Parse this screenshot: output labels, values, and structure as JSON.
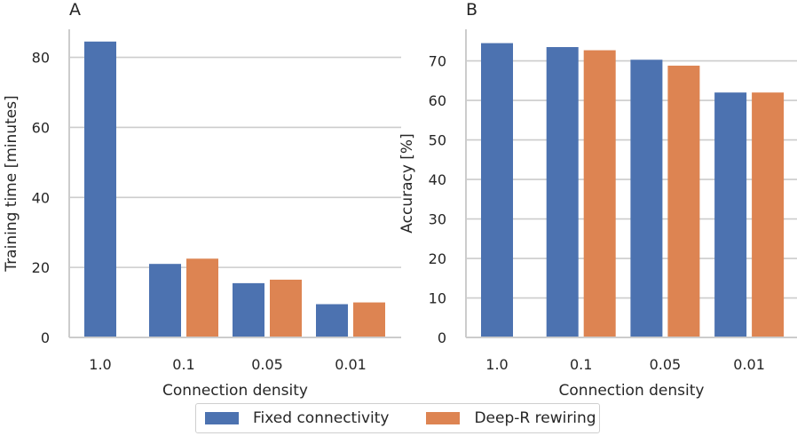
{
  "chart_data": [
    {
      "type": "bar",
      "panel_label": "A",
      "categories": [
        "1.0",
        "0.1",
        "0.05",
        "0.01"
      ],
      "xlabel": "Connection density",
      "ylabel": "Training time [minutes]",
      "ylim": [
        0,
        88
      ],
      "yticks": [
        0,
        20,
        40,
        60,
        80
      ],
      "grid": "horizontal",
      "series": [
        {
          "name": "Fixed connectivity",
          "values": [
            84.5,
            21,
            15.5,
            9.5
          ]
        },
        {
          "name": "Deep-R rewiring",
          "values": [
            null,
            22.5,
            16.5,
            10
          ]
        }
      ]
    },
    {
      "type": "bar",
      "panel_label": "B",
      "categories": [
        "1.0",
        "0.1",
        "0.05",
        "0.01"
      ],
      "xlabel": "Connection density",
      "ylabel": "Accuracy [%]",
      "ylim": [
        0,
        78
      ],
      "yticks": [
        0,
        10,
        20,
        30,
        40,
        50,
        60,
        70
      ],
      "grid": "horizontal",
      "series": [
        {
          "name": "Fixed connectivity",
          "values": [
            74.5,
            73.5,
            70.3,
            62
          ]
        },
        {
          "name": "Deep-R rewiring",
          "values": [
            null,
            72.7,
            68.8,
            62
          ]
        }
      ]
    }
  ],
  "colors": {
    "fixed": "#4c72b0",
    "deepr": "#dd8452",
    "grid": "#cccccc",
    "spine": "#cccccc"
  },
  "legend": {
    "entries": [
      {
        "label": "Fixed connectivity"
      },
      {
        "label": "Deep-R rewiring"
      }
    ],
    "position": "bottom-center"
  }
}
